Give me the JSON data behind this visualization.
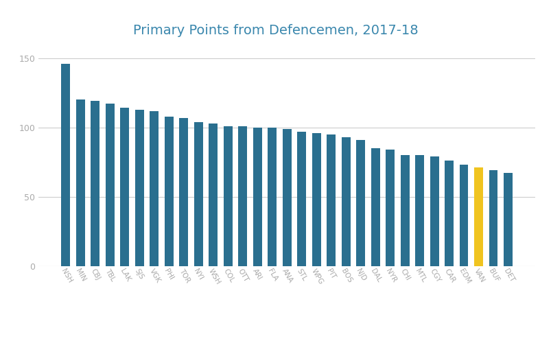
{
  "title": "Primary Points from Defencemen, 2017-18",
  "categories": [
    "NSH",
    "MIN",
    "CBJ",
    "TBL",
    "LAK",
    "SJS",
    "VGK",
    "PHI",
    "TOR",
    "NYI",
    "WSH",
    "COL",
    "OTT",
    "ARI",
    "FLA",
    "ANA",
    "STL",
    "WPG",
    "PIT",
    "BOS",
    "NJD",
    "DAL",
    "NYR",
    "CHI",
    "MTL",
    "CGY",
    "CAR",
    "EDM",
    "VAN",
    "BUF",
    "DET"
  ],
  "values": [
    146,
    120,
    119,
    117,
    114,
    113,
    112,
    108,
    107,
    104,
    103,
    101,
    101,
    100,
    100,
    99,
    97,
    96,
    95,
    93,
    91,
    85,
    84,
    80,
    80,
    79,
    76,
    73,
    71,
    69,
    67
  ],
  "bar_colors": [
    "#2a6f8f",
    "#2a6f8f",
    "#2a6f8f",
    "#2a6f8f",
    "#2a6f8f",
    "#2a6f8f",
    "#2a6f8f",
    "#2a6f8f",
    "#2a6f8f",
    "#2a6f8f",
    "#2a6f8f",
    "#2a6f8f",
    "#2a6f8f",
    "#2a6f8f",
    "#2a6f8f",
    "#2a6f8f",
    "#2a6f8f",
    "#2a6f8f",
    "#2a6f8f",
    "#2a6f8f",
    "#2a6f8f",
    "#2a6f8f",
    "#2a6f8f",
    "#2a6f8f",
    "#2a6f8f",
    "#2a6f8f",
    "#2a6f8f",
    "#2a6f8f",
    "#f0c420",
    "#2a6f8f",
    "#2a6f8f"
  ],
  "ylim": [
    0,
    160
  ],
  "yticks": [
    0,
    50,
    100,
    150
  ],
  "background_color": "#ffffff",
  "title_color": "#3a87ad",
  "title_fontsize": 14,
  "tick_label_color": "#aaaaaa",
  "grid_color": "#cccccc",
  "bar_width": 0.6
}
